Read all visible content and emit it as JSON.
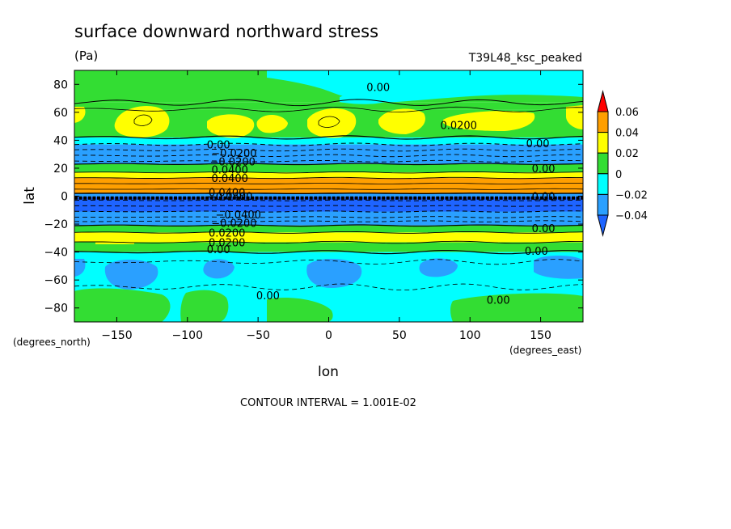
{
  "title": "surface downward northward stress",
  "units": "(Pa)",
  "experiment": "T39L48_ksc_peaked",
  "contour_interval_text": "CONTOUR INTERVAL = 1.001E-02",
  "chart_data": {
    "type": "heatmap",
    "title": "surface downward northward stress",
    "units": "(Pa)",
    "xlabel": "lon",
    "ylabel": "lat",
    "x_units_label": "(degrees_east)",
    "y_units_label": "(degrees_north)",
    "xlim": [
      -180,
      180
    ],
    "ylim": [
      -90,
      90
    ],
    "xticks": [
      {
        "v": -150,
        "label": "−150"
      },
      {
        "v": -100,
        "label": "−100"
      },
      {
        "v": -50,
        "label": "−50"
      },
      {
        "v": 0,
        "label": "0"
      },
      {
        "v": 50,
        "label": "50"
      },
      {
        "v": 100,
        "label": "100"
      },
      {
        "v": 150,
        "label": "150"
      }
    ],
    "yticks": [
      {
        "v": 80,
        "label": "80"
      },
      {
        "v": 60,
        "label": "60"
      },
      {
        "v": 40,
        "label": "40"
      },
      {
        "v": 20,
        "label": "20"
      },
      {
        "v": 0,
        "label": "0"
      },
      {
        "v": -20,
        "label": "−20"
      },
      {
        "v": -40,
        "label": "−40"
      },
      {
        "v": -60,
        "label": "−60"
      },
      {
        "v": -80,
        "label": "−80"
      }
    ],
    "contour_interval": 0.01001,
    "colorbar": {
      "levels": [
        {
          "label": "0.06",
          "v": 0.06
        },
        {
          "label": "0.04",
          "v": 0.04
        },
        {
          "label": "0.02",
          "v": 0.02
        },
        {
          "label": "0",
          "v": 0
        },
        {
          "label": "−0.02",
          "v": -0.02
        },
        {
          "label": "−0.04",
          "v": -0.04
        }
      ],
      "colors": {
        "above_0.06": "#ff0000",
        "0.04_to_0.06": "#ff9f00",
        "0.02_to_0.04": "#ffff00",
        "0_to_0.02": "#33dd33",
        "-0.02_to_0": "#00ffff",
        "-0.04_to_-0.02": "#2aa0ff",
        "below_-0.04": "#1e64ff"
      }
    },
    "zonal_bands": [
      {
        "lat_top": 90,
        "lat_bottom": 67,
        "class": "0_to_0.02"
      },
      {
        "lat_top": 67,
        "lat_bottom": 62,
        "class": "0_to_0.02"
      },
      {
        "lat_top": 62,
        "lat_bottom": 42,
        "class": "0_to_0.02"
      },
      {
        "lat_top": 42,
        "lat_bottom": 37,
        "class": "-0.02_to_0"
      },
      {
        "lat_top": 37,
        "lat_bottom": 23,
        "class": "-0.04_to_-0.02"
      },
      {
        "lat_top": 23,
        "lat_bottom": 17,
        "class": "0_to_0.02"
      },
      {
        "lat_top": 17,
        "lat_bottom": 13,
        "class": "0.02_to_0.04"
      },
      {
        "lat_top": 13,
        "lat_bottom": 2,
        "class": "0.04_to_0.06"
      },
      {
        "lat_top": 2,
        "lat_bottom": -0.5,
        "class": "-0.04_to_-0.02"
      },
      {
        "lat_top": -0.5,
        "lat_bottom": -11,
        "class": "below_-0.04"
      },
      {
        "lat_top": -11,
        "lat_bottom": -21,
        "class": "-0.04_to_-0.02"
      },
      {
        "lat_top": -21,
        "lat_bottom": -26,
        "class": "0_to_0.02"
      },
      {
        "lat_top": -26,
        "lat_bottom": -33,
        "class": "0.02_to_0.04"
      },
      {
        "lat_top": -33,
        "lat_bottom": -40,
        "class": "0_to_0.02"
      },
      {
        "lat_top": -40,
        "lat_bottom": -90,
        "class": "-0.02_to_0"
      }
    ],
    "contour_labels": [
      {
        "text": "0.00",
        "lon": 35,
        "lat": 78
      },
      {
        "text": "0.0200",
        "lon": 92,
        "lat": 51
      },
      {
        "text": "0.00",
        "lon": 148,
        "lat": 38
      },
      {
        "text": "0.00",
        "lon": -78,
        "lat": 37
      },
      {
        "text": "−0.0200",
        "lon": -67,
        "lat": 31
      },
      {
        "text": "−0.0200",
        "lon": -68,
        "lat": 25
      },
      {
        "text": "0.00",
        "lon": 152,
        "lat": 20
      },
      {
        "text": "0.0400",
        "lon": -70,
        "lat": 19
      },
      {
        "text": "0.0400",
        "lon": -70,
        "lat": 13
      },
      {
        "text": "0.0400",
        "lon": -72,
        "lat": 3
      },
      {
        "text": "−0.0400",
        "lon": -70,
        "lat": 0
      },
      {
        "text": "0.00",
        "lon": 152,
        "lat": 0
      },
      {
        "text": "−0.0400",
        "lon": -64,
        "lat": -13
      },
      {
        "text": "−0.0200",
        "lon": -67,
        "lat": -19
      },
      {
        "text": "0.00",
        "lon": 152,
        "lat": -23
      },
      {
        "text": "0.0200",
        "lon": -72,
        "lat": -26
      },
      {
        "text": "0.0200",
        "lon": -72,
        "lat": -33
      },
      {
        "text": "0.00",
        "lon": -78,
        "lat": -38
      },
      {
        "text": "0.00",
        "lon": 147,
        "lat": -39
      },
      {
        "text": "0.00",
        "lon": -43,
        "lat": -71
      },
      {
        "text": "0.00",
        "lon": 120,
        "lat": -74
      }
    ]
  }
}
